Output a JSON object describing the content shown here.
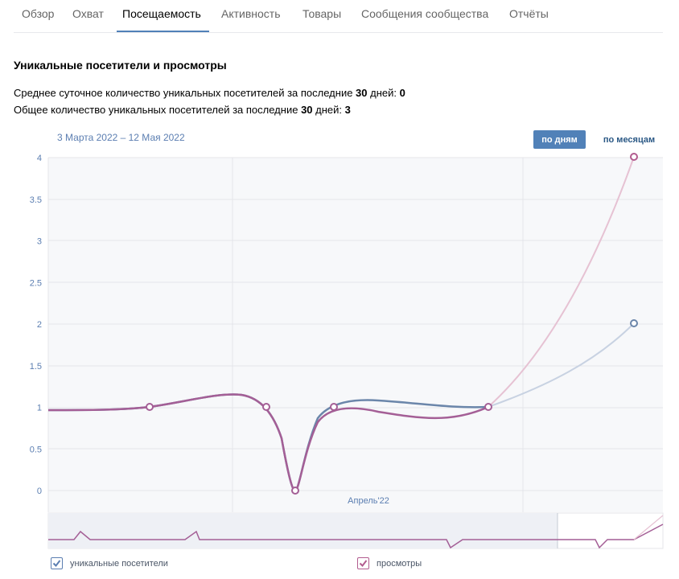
{
  "tabs": [
    {
      "label": "Обзор"
    },
    {
      "label": "Охват"
    },
    {
      "label": "Посещаемость"
    },
    {
      "label": "Активность"
    },
    {
      "label": "Товары"
    },
    {
      "label": "Сообщения сообщества"
    },
    {
      "label": "Отчёты"
    }
  ],
  "active_tab": "Посещаемость",
  "section_title": "Уникальные посетители и просмотры",
  "stats": {
    "avg_prefix": "Среднее суточное количество уникальных посетителей за последние ",
    "avg_days": "30",
    "avg_mid": " дней: ",
    "avg_value": "0",
    "total_prefix": "Общее количество уникальных посетителей за последние ",
    "total_days": "30",
    "total_mid": " дней: ",
    "total_value": "3"
  },
  "date_range": "3 Марта 2022 – 12 Мая 2022",
  "buttons": {
    "by_days": "по дням",
    "by_months": "по месяцам"
  },
  "colors": {
    "visitors": "#6b86aa",
    "views": "#a45f96",
    "accent": "#5181b8"
  },
  "chart_data": {
    "type": "line",
    "y_ticks": [
      "4",
      "3.5",
      "3",
      "2.5",
      "2",
      "1.5",
      "1",
      "0.5",
      "0"
    ],
    "ylim": [
      0,
      4
    ],
    "x_tick_label": "Апрель'22",
    "grid": true,
    "series": [
      {
        "name": "уникальные посетители",
        "points": [
          1,
          1,
          0,
          1,
          1,
          2
        ]
      },
      {
        "name": "просмотры",
        "points": [
          1,
          1,
          0,
          1,
          1,
          4
        ]
      }
    ]
  },
  "legend": {
    "visitors": "уникальные посетители",
    "views": "просмотры"
  }
}
